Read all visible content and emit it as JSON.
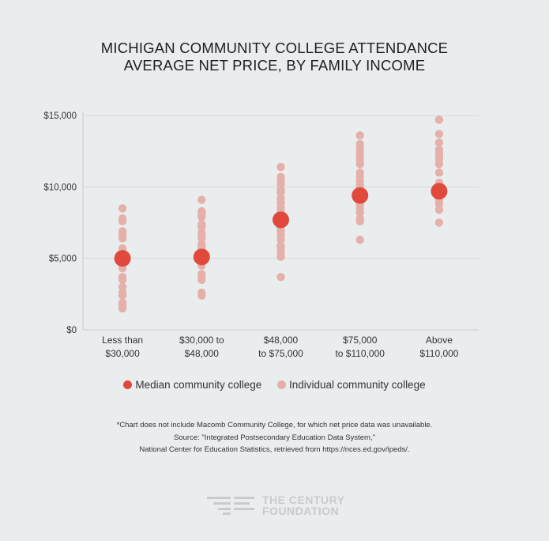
{
  "title": {
    "line1": "MICHIGAN COMMUNITY COLLEGE ATTENDANCE",
    "line2": "AVERAGE NET PRICE, BY FAMILY INCOME"
  },
  "colors": {
    "median": "#e2493d",
    "individual": "#e6b0aa",
    "grid": "#d6dadb",
    "background": "#e9edee"
  },
  "legend": {
    "median_label": "Median community college",
    "individual_label": "Individual community college"
  },
  "footnote": {
    "line1": "*Chart does not include Macomb Community College, for which net price data was unavailable.",
    "line2": "Source: \"Integrated Postsecondary Education Data System,\"",
    "line3": "National Center for Education Statistics, retrieved from https://nces.ed.gov/ipeds/."
  },
  "logo": {
    "line1": "THE CENTURY",
    "line2": "FOUNDATION"
  },
  "chart_data": {
    "type": "scatter",
    "title": "MICHIGAN COMMUNITY COLLEGE ATTENDANCE AVERAGE NET PRICE, BY FAMILY INCOME",
    "xlabel": "",
    "ylabel": "",
    "ylim": [
      0,
      15000
    ],
    "yticks": [
      0,
      5000,
      10000,
      15000
    ],
    "ytick_labels": [
      "$0",
      "$5,000",
      "$10,000",
      "$15,000"
    ],
    "grid": true,
    "legend_position": "bottom",
    "categories": [
      {
        "line1": "Less than",
        "line2": "$30,000"
      },
      {
        "line1": "$30,000 to",
        "line2": "$48,000"
      },
      {
        "line1": "$48,000",
        "line2": "to $75,000"
      },
      {
        "line1": "$75,000",
        "line2": "to $110,000"
      },
      {
        "line1": "Above",
        "line2": "$110,000"
      }
    ],
    "series": [
      {
        "name": "Individual community college",
        "values": [
          [
            8500,
            7800,
            7600,
            6900,
            6700,
            6400,
            5700,
            5500,
            5200,
            4700,
            4300,
            3700,
            3500,
            3000,
            2600,
            2400,
            1900,
            1700,
            1500
          ],
          [
            9100,
            8300,
            8100,
            7900,
            7400,
            7200,
            6800,
            6600,
            6400,
            6000,
            5800,
            5600,
            5400,
            4700,
            4500,
            3900,
            3700,
            3500,
            2600,
            2400
          ],
          [
            11400,
            10700,
            10500,
            10200,
            9800,
            9600,
            9200,
            8900,
            8600,
            8300,
            8000,
            7800,
            7400,
            7200,
            6900,
            6600,
            6300,
            5900,
            5700,
            5400,
            5100,
            3700
          ],
          [
            13600,
            13000,
            12700,
            12400,
            12200,
            11900,
            11600,
            11000,
            10700,
            10400,
            10100,
            9900,
            9600,
            9100,
            8800,
            8500,
            8200,
            7800,
            7600,
            6300
          ],
          [
            14700,
            13700,
            13100,
            12600,
            12400,
            12100,
            11900,
            11600,
            11000,
            10300,
            9900,
            9400,
            9100,
            8800,
            8400,
            7500
          ]
        ]
      },
      {
        "name": "Median community college",
        "values": [
          5000,
          5100,
          7700,
          9400,
          9700
        ]
      }
    ]
  }
}
